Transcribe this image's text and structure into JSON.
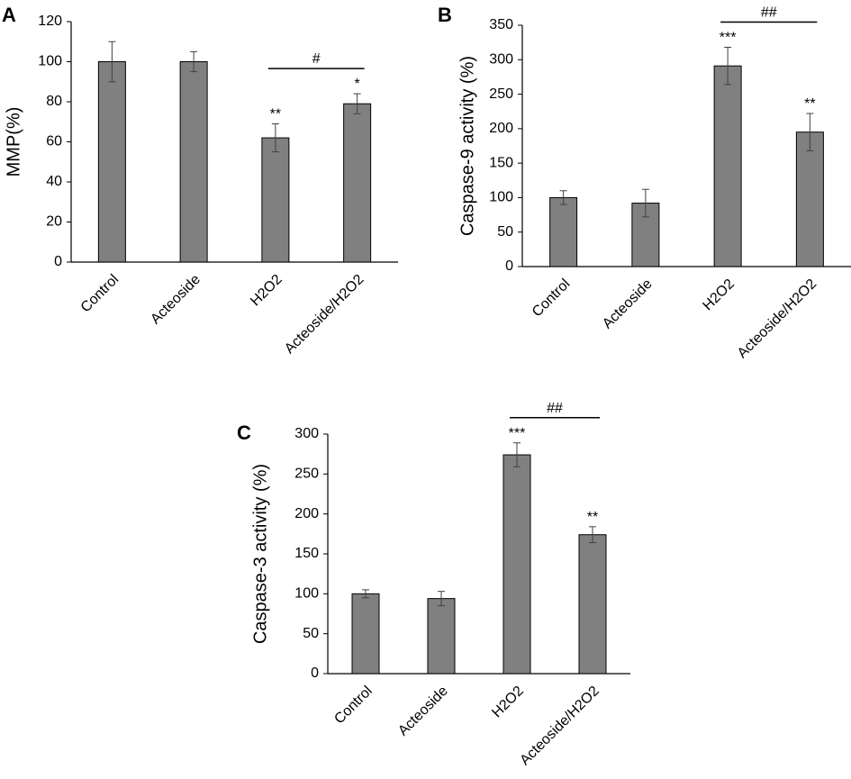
{
  "chart_data": [
    {
      "panel": "A",
      "type": "bar",
      "categories": [
        "Control",
        "Acteoside",
        "H2O2",
        "Acteoside/H2O2"
      ],
      "values": [
        100,
        100,
        62,
        79
      ],
      "errors": [
        10,
        5,
        7,
        5
      ],
      "stars": [
        "",
        "",
        "**",
        "*"
      ],
      "ylabel": "MMP(%)",
      "xlabel": "",
      "ylim": [
        0,
        120
      ],
      "yticks": [
        0,
        20,
        40,
        60,
        80,
        100,
        120
      ],
      "bracket": {
        "from": "H2O2",
        "to": "Acteoside/H2O2",
        "label": "#"
      },
      "bar_color": "#808080"
    },
    {
      "panel": "B",
      "type": "bar",
      "categories": [
        "Control",
        "Acteoside",
        "H2O2",
        "Acteoside/H2O2"
      ],
      "values": [
        100,
        92,
        291,
        195
      ],
      "errors": [
        10,
        20,
        27,
        27
      ],
      "stars": [
        "",
        "",
        "***",
        "**"
      ],
      "ylabel": "Caspase-9 activity (%)",
      "xlabel": "",
      "ylim": [
        0,
        350
      ],
      "yticks": [
        0,
        50,
        100,
        150,
        200,
        250,
        300,
        350
      ],
      "bracket": {
        "from": "H2O2",
        "to": "Acteoside/H2O2",
        "label": "##"
      },
      "bar_color": "#808080"
    },
    {
      "panel": "C",
      "type": "bar",
      "categories": [
        "Control",
        "Acteoside",
        "H2O2",
        "Acteoside/H2O2"
      ],
      "values": [
        100,
        94,
        274,
        174
      ],
      "errors": [
        5,
        9,
        15,
        10
      ],
      "stars": [
        "",
        "",
        "***",
        "**"
      ],
      "ylabel": "Caspase-3 activity (%)",
      "xlabel": "",
      "ylim": [
        0,
        300
      ],
      "yticks": [
        0,
        50,
        100,
        150,
        200,
        250,
        300
      ],
      "bracket": {
        "from": "H2O2",
        "to": "Acteoside/H2O2",
        "label": "##"
      },
      "bar_color": "#808080"
    }
  ]
}
